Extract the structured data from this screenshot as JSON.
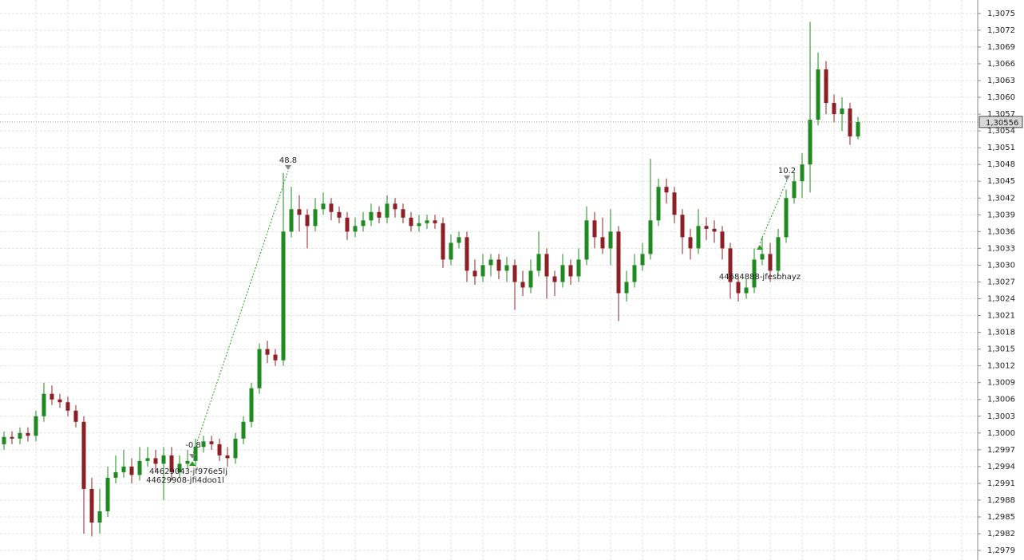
{
  "chart_data": {
    "type": "candlestick",
    "categories": [
      null,
      null,
      null,
      null,
      null,
      null,
      null,
      null,
      null,
      null,
      null,
      null,
      null,
      null,
      null,
      null,
      null,
      null,
      null,
      null,
      null,
      null,
      null,
      null,
      null,
      null,
      null,
      null,
      null,
      null,
      null,
      null,
      null,
      null,
      null,
      null,
      null,
      null,
      null,
      null,
      null,
      null,
      null,
      null,
      null,
      null,
      null,
      null,
      null,
      null,
      null,
      null,
      null,
      null,
      null,
      null,
      null,
      null,
      null,
      null,
      null,
      null,
      null,
      null,
      null,
      null,
      null,
      null,
      null,
      null,
      null,
      null,
      null,
      null,
      null,
      null,
      null,
      null,
      null,
      null,
      null,
      null,
      null,
      null,
      null,
      null,
      null,
      null,
      null,
      null,
      null,
      null,
      null,
      null,
      null,
      null,
      null,
      null,
      null,
      null,
      null,
      null,
      null,
      null,
      null,
      null,
      null,
      null
    ],
    "open": [
      1.2998,
      1.29993,
      1.2999,
      1.3,
      1.29995,
      1.3003,
      1.3007,
      1.3006,
      1.30055,
      1.3004,
      1.3002,
      1.299,
      1.2984,
      1.2986,
      1.2992,
      1.2993,
      1.2994,
      1.29925,
      1.2995,
      1.29955,
      1.29945,
      1.2996,
      1.2993,
      1.29945,
      1.2995,
      1.29975,
      1.29985,
      1.2998,
      1.2996,
      1.29955,
      1.2999,
      1.3002,
      1.3008,
      1.3015,
      1.3014,
      1.3013,
      1.3036,
      1.304,
      1.3039,
      1.3037,
      1.304,
      1.3041,
      1.30395,
      1.30385,
      1.3036,
      1.3037,
      1.3038,
      1.30395,
      1.30385,
      1.3041,
      1.304,
      1.30385,
      1.3037,
      1.30375,
      1.3038,
      1.30375,
      1.3031,
      1.3034,
      1.3035,
      1.3029,
      1.3028,
      1.303,
      1.3031,
      1.3029,
      1.303,
      1.3027,
      1.3026,
      1.3029,
      1.3032,
      1.3028,
      1.3027,
      1.303,
      1.3028,
      1.3031,
      1.3038,
      1.3035,
      1.3033,
      1.3036,
      1.3025,
      1.3027,
      1.303,
      1.3032,
      1.3038,
      1.3044,
      1.3043,
      1.3039,
      1.3035,
      1.3033,
      1.3037,
      1.30365,
      1.3036,
      1.3033,
      1.3027,
      1.3025,
      1.3026,
      1.3031,
      1.3032,
      1.3029,
      1.3035,
      1.3042,
      1.3045,
      1.3048,
      1.3056,
      1.3065,
      1.3059,
      1.3057,
      1.3058,
      1.3053
    ],
    "high": [
      1.30003,
      1.30003,
      1.3001,
      1.3001,
      1.3004,
      1.3009,
      1.30085,
      1.3007,
      1.30065,
      1.3005,
      1.3003,
      1.2992,
      1.299,
      1.2994,
      1.2996,
      1.2997,
      1.29955,
      1.29975,
      1.29975,
      1.2997,
      1.29975,
      1.29975,
      1.2996,
      1.2997,
      1.2999,
      1.29995,
      1.29995,
      1.2999,
      1.29975,
      1.3,
      1.3003,
      1.3009,
      1.3016,
      1.30165,
      1.3015,
      1.30465,
      1.3044,
      1.30425,
      1.304,
      1.3042,
      1.3043,
      1.3042,
      1.30405,
      1.30395,
      1.30385,
      1.30395,
      1.3041,
      1.30405,
      1.30425,
      1.3042,
      1.3041,
      1.30395,
      1.3039,
      1.3039,
      1.3039,
      1.30385,
      1.30355,
      1.3036,
      1.3036,
      1.3031,
      1.3032,
      1.3032,
      1.3032,
      1.30315,
      1.3031,
      1.3029,
      1.3031,
      1.3036,
      1.3033,
      1.3029,
      1.3032,
      1.3031,
      1.3033,
      1.30405,
      1.30395,
      1.30385,
      1.304,
      1.3037,
      1.3029,
      1.3032,
      1.3034,
      1.3049,
      1.30455,
      1.30455,
      1.3044,
      1.304,
      1.30365,
      1.304,
      1.30385,
      1.3038,
      1.3037,
      1.3034,
      1.3028,
      1.30275,
      1.3033,
      1.3035,
      1.3034,
      1.30365,
      1.30435,
      1.30465,
      1.305,
      1.30735,
      1.3068,
      1.30665,
      1.30605,
      1.306,
      1.3059,
      1.30565
    ],
    "low": [
      1.2997,
      1.2998,
      1.2998,
      1.29985,
      1.29985,
      1.3002,
      1.3005,
      1.30045,
      1.3003,
      1.3001,
      1.2982,
      1.29815,
      1.2982,
      1.2985,
      1.2991,
      1.2992,
      1.2991,
      1.29915,
      1.2994,
      1.2993,
      1.2988,
      1.29915,
      1.2992,
      1.29935,
      1.2994,
      1.29965,
      1.2997,
      1.2995,
      1.2994,
      1.29945,
      1.2998,
      1.3001,
      1.3007,
      1.30125,
      1.3012,
      1.3012,
      1.3035,
      1.3036,
      1.3033,
      1.3036,
      1.3039,
      1.3038,
      1.30375,
      1.30345,
      1.3035,
      1.3036,
      1.3037,
      1.30375,
      1.30375,
      1.30385,
      1.30375,
      1.3036,
      1.3036,
      1.30365,
      1.30365,
      1.30295,
      1.303,
      1.3033,
      1.3027,
      1.30265,
      1.3027,
      1.3028,
      1.30275,
      1.3027,
      1.3022,
      1.30245,
      1.3025,
      1.3028,
      1.3024,
      1.30245,
      1.3026,
      1.30265,
      1.3027,
      1.303,
      1.3033,
      1.3032,
      1.303,
      1.302,
      1.30235,
      1.3026,
      1.3029,
      1.3031,
      1.3037,
      1.3041,
      1.30375,
      1.3032,
      1.3031,
      1.3032,
      1.30345,
      1.3034,
      1.3031,
      1.3024,
      1.30235,
      1.3024,
      1.3025,
      1.303,
      1.3027,
      1.3028,
      1.3034,
      1.3041,
      1.3042,
      1.3043,
      1.3055,
      1.3057,
      1.30555,
      1.3054,
      1.30515,
      1.30525
    ],
    "close": [
      1.29993,
      1.2999,
      1.3,
      1.29995,
      1.3003,
      1.3007,
      1.3006,
      1.30055,
      1.3004,
      1.3002,
      1.299,
      1.2984,
      1.2986,
      1.2992,
      1.2993,
      1.2994,
      1.29925,
      1.2995,
      1.29955,
      1.29945,
      1.2996,
      1.2993,
      1.29945,
      1.2995,
      1.29975,
      1.29985,
      1.2998,
      1.2996,
      1.29955,
      1.2999,
      1.3002,
      1.3008,
      1.3015,
      1.3014,
      1.3013,
      1.3036,
      1.304,
      1.3039,
      1.3037,
      1.304,
      1.3041,
      1.30395,
      1.30385,
      1.3036,
      1.3037,
      1.3038,
      1.30395,
      1.30385,
      1.3041,
      1.304,
      1.30385,
      1.3037,
      1.30375,
      1.3038,
      1.30375,
      1.3031,
      1.3034,
      1.3035,
      1.3029,
      1.3028,
      1.303,
      1.3031,
      1.3029,
      1.303,
      1.3027,
      1.3026,
      1.3029,
      1.3032,
      1.3028,
      1.3027,
      1.303,
      1.3028,
      1.3031,
      1.3038,
      1.3035,
      1.3033,
      1.3036,
      1.3025,
      1.3027,
      1.303,
      1.3032,
      1.3038,
      1.3044,
      1.3043,
      1.3039,
      1.3035,
      1.3033,
      1.3037,
      1.30365,
      1.3036,
      1.3033,
      1.3027,
      1.3025,
      1.3026,
      1.3031,
      1.3032,
      1.3029,
      1.3035,
      1.3042,
      1.3045,
      1.3048,
      1.3056,
      1.3065,
      1.3059,
      1.3057,
      1.3058,
      1.3053,
      1.30556
    ],
    "up_color": "#1f8a1f",
    "down_color": "#8e1f24",
    "ylim": [
      1.29773,
      1.30774
    ],
    "yticks": [
      {
        "value": 1.2979,
        "label": "1,2979"
      },
      {
        "value": 1.2982,
        "label": "1,2982"
      },
      {
        "value": 1.2985,
        "label": "1,2985"
      },
      {
        "value": 1.2988,
        "label": "1,2988"
      },
      {
        "value": 1.2991,
        "label": "1,2991"
      },
      {
        "value": 1.2994,
        "label": "1,2994"
      },
      {
        "value": 1.2997,
        "label": "1,2997"
      },
      {
        "value": 1.3,
        "label": "1,3000"
      },
      {
        "value": 1.3003,
        "label": "1,3003"
      },
      {
        "value": 1.3006,
        "label": "1,3006"
      },
      {
        "value": 1.3009,
        "label": "1,3009"
      },
      {
        "value": 1.3012,
        "label": "1,3012"
      },
      {
        "value": 1.3015,
        "label": "1,3015"
      },
      {
        "value": 1.3018,
        "label": "1,3018"
      },
      {
        "value": 1.3021,
        "label": "1,3021"
      },
      {
        "value": 1.3024,
        "label": "1,3024"
      },
      {
        "value": 1.3027,
        "label": "1,3027"
      },
      {
        "value": 1.303,
        "label": "1,3030"
      },
      {
        "value": 1.3033,
        "label": "1,3033"
      },
      {
        "value": 1.3036,
        "label": "1,3036"
      },
      {
        "value": 1.3039,
        "label": "1,3039"
      },
      {
        "value": 1.3042,
        "label": "1,3042"
      },
      {
        "value": 1.3045,
        "label": "1,3045"
      },
      {
        "value": 1.3048,
        "label": "1,3048"
      },
      {
        "value": 1.3051,
        "label": "1,3051"
      },
      {
        "value": 1.3054,
        "label": "1,3054"
      },
      {
        "value": 1.3057,
        "label": "1,3057"
      },
      {
        "value": 1.306,
        "label": "1,3060"
      },
      {
        "value": 1.3063,
        "label": "1,3063"
      },
      {
        "value": 1.3066,
        "label": "1,3066"
      },
      {
        "value": 1.3069,
        "label": "1,3069"
      },
      {
        "value": 1.3072,
        "label": "1,3072"
      },
      {
        "value": 1.3075,
        "label": "1,3075"
      }
    ],
    "grid": true,
    "last_price": {
      "value": 1.30556,
      "label": "1,30556"
    },
    "annotations": [
      "48.8",
      "10.2",
      "-0.8",
      "44629043-jf976e5lj",
      "44629908-jfi4doo1l",
      "44684888-jfesbhayz"
    ]
  }
}
